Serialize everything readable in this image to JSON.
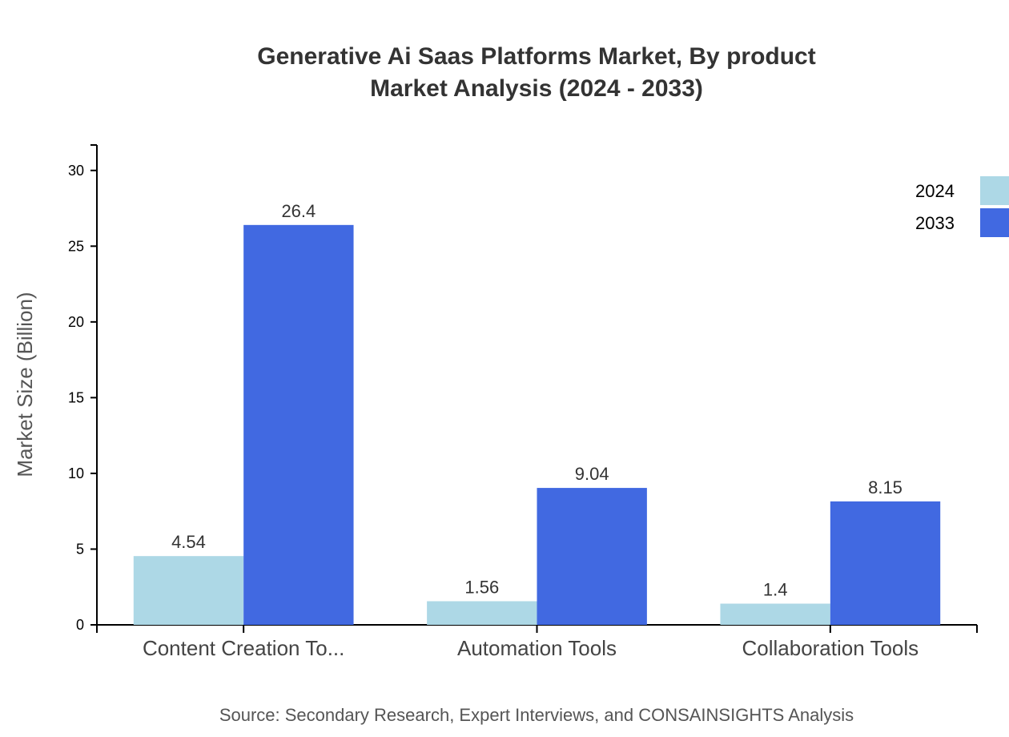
{
  "chart_data": {
    "type": "bar",
    "title": [
      "Generative Ai Saas Platforms Market, By product",
      "Market Analysis (2024 - 2033)"
    ],
    "ylabel": "Market Size (Billion)",
    "xlabel": "",
    "categories": [
      "Content Creation To...",
      "Automation Tools",
      "Collaboration Tools"
    ],
    "series": [
      {
        "name": "2024",
        "color": "#ADD8E6",
        "values": [
          4.54,
          1.56,
          1.4
        ]
      },
      {
        "name": "2033",
        "color": "#4169E1",
        "values": [
          26.4,
          9.04,
          8.15
        ]
      }
    ],
    "data_labels": [
      [
        "4.54",
        "1.56",
        "1.4"
      ],
      [
        "26.4",
        "9.04",
        "8.15"
      ]
    ],
    "yticks": [
      0,
      5,
      10,
      15,
      20,
      25,
      30
    ],
    "ylim": [
      0,
      31.68
    ],
    "grid": false,
    "legend_position": "top-right"
  },
  "source": "Source: Secondary Research, Expert Interviews, and CONSAINSIGHTS Analysis"
}
